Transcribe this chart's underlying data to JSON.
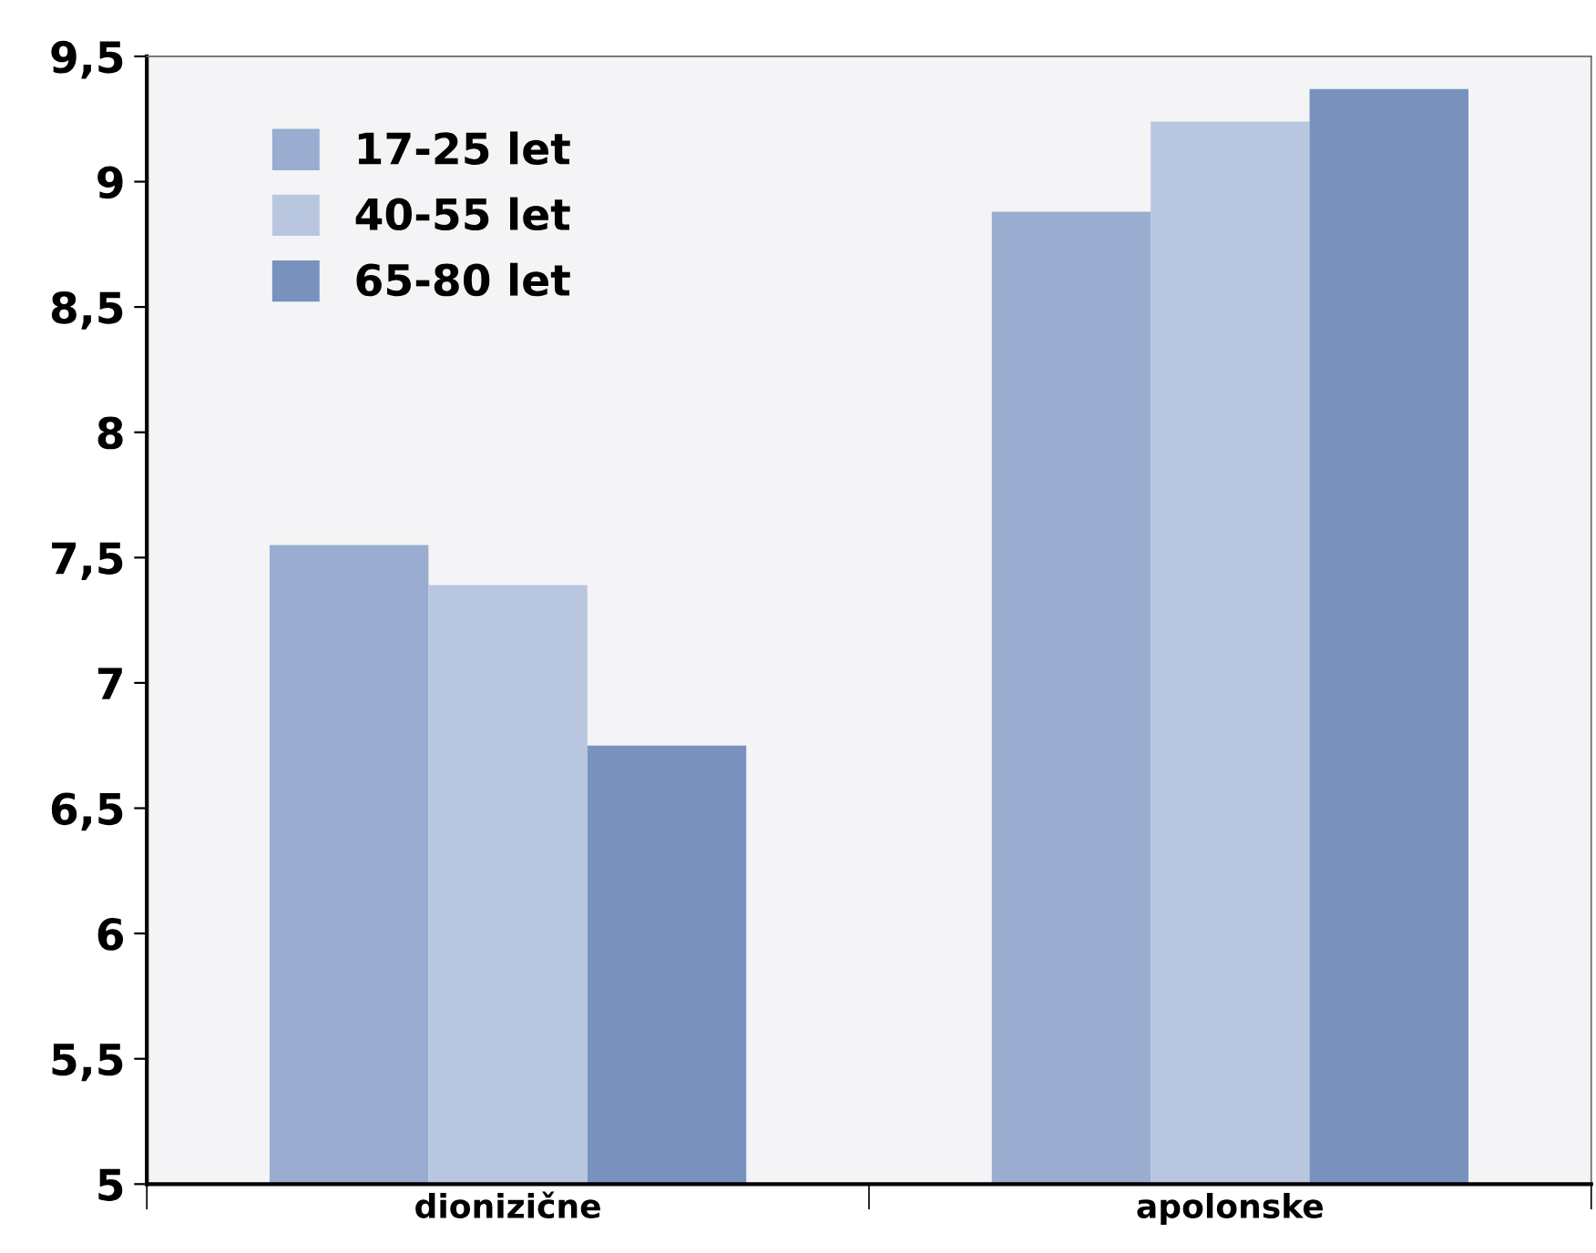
{
  "chart_data": {
    "type": "bar",
    "categories": [
      "dionizične",
      "apolonske"
    ],
    "series": [
      {
        "name": "17-25 let",
        "color": "#9aaccf",
        "values": [
          7.55,
          8.88
        ]
      },
      {
        "name": "40-55 let",
        "color": "#b8c6e0",
        "values": [
          7.39,
          9.24
        ]
      },
      {
        "name": "65-80 let",
        "color": "#7892bd",
        "values": [
          6.75,
          9.37
        ]
      }
    ],
    "ylim": [
      5,
      9.5
    ],
    "yticks": [
      {
        "value": 5,
        "label": "5"
      },
      {
        "value": 5.5,
        "label": "5,5"
      },
      {
        "value": 6,
        "label": "6"
      },
      {
        "value": 6.5,
        "label": "6,5"
      },
      {
        "value": 7,
        "label": "7"
      },
      {
        "value": 7.5,
        "label": "7,5"
      },
      {
        "value": 8,
        "label": "8"
      },
      {
        "value": 8.5,
        "label": "8,5"
      },
      {
        "value": 9,
        "label": "9"
      },
      {
        "value": 9.5,
        "label": "9,5"
      }
    ],
    "grid": false,
    "legend": "top left"
  }
}
